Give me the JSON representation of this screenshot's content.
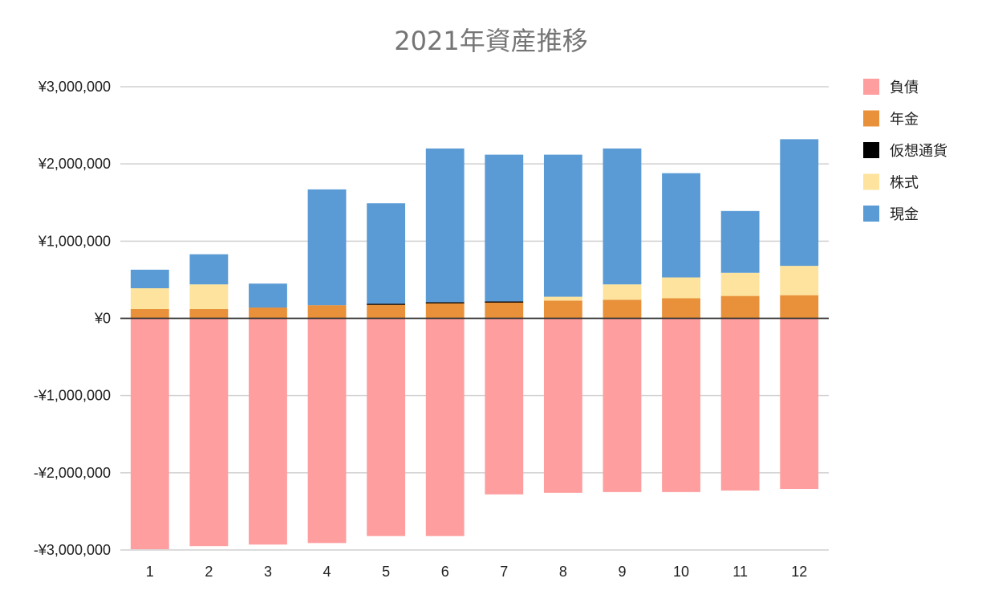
{
  "chart_data": {
    "type": "bar",
    "stacked": true,
    "title": "2021年資産推移",
    "xlabel": "",
    "ylabel": "",
    "categories": [
      "1",
      "2",
      "3",
      "4",
      "5",
      "6",
      "7",
      "8",
      "9",
      "10",
      "11",
      "12"
    ],
    "ylim": [
      -3000000,
      3000000
    ],
    "yticks": [
      3000000,
      2000000,
      1000000,
      0,
      -1000000,
      -2000000,
      -3000000
    ],
    "ytick_labels": [
      "¥3,000,000",
      "¥2,000,000",
      "¥1,000,000",
      "¥0",
      "-¥1,000,000",
      "-¥2,000,000",
      "-¥3,000,000"
    ],
    "grid": true,
    "legend_position": "right",
    "series": [
      {
        "name": "負債",
        "color": "#ff9e9f",
        "values": [
          -2990000,
          -2950000,
          -2930000,
          -2910000,
          -2820000,
          -2820000,
          -2280000,
          -2260000,
          -2250000,
          -2250000,
          -2230000,
          -2210000
        ]
      },
      {
        "name": "年金",
        "color": "#e8903a",
        "values": [
          120000,
          120000,
          140000,
          170000,
          180000,
          200000,
          210000,
          230000,
          240000,
          260000,
          290000,
          300000
        ]
      },
      {
        "name": "仮想通貨",
        "color": "#000000",
        "values": [
          0,
          0,
          0,
          0,
          10000,
          10000,
          10000,
          0,
          0,
          0,
          0,
          0
        ]
      },
      {
        "name": "株式",
        "color": "#fde39d",
        "values": [
          270000,
          320000,
          0,
          0,
          0,
          0,
          0,
          50000,
          200000,
          270000,
          300000,
          380000
        ]
      },
      {
        "name": "現金",
        "color": "#5a9bd5",
        "values": [
          240000,
          390000,
          310000,
          1500000,
          1300000,
          1990000,
          1900000,
          1840000,
          1760000,
          1350000,
          800000,
          1640000
        ]
      }
    ]
  }
}
